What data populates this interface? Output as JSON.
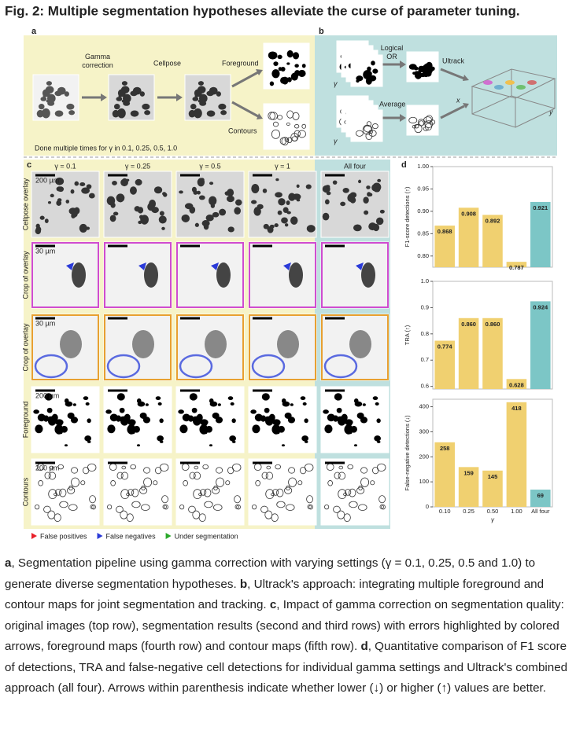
{
  "title": "Fig. 2: Multiple segmentation hypotheses alleviate the curse of parameter tuning.",
  "panel_a": {
    "label": "a",
    "steps": [
      "Gamma correction",
      "Cellpose",
      "Foreground",
      "Contours"
    ],
    "note": "Done multiple times for γ in 0.1, 0.25, 0.5, 1.0"
  },
  "panel_b": {
    "label": "b",
    "steps": [
      "Logical OR",
      "Average",
      "Ultrack"
    ],
    "axis_labels": [
      "γ",
      "γ",
      "x",
      "y"
    ]
  },
  "panel_c": {
    "label": "c",
    "columns": [
      "γ = 0.1",
      "γ = 0.25",
      "γ = 0.5",
      "γ = 1",
      "All four"
    ],
    "rows": [
      "Cellpose overlay",
      "Crop of overlay",
      "Crop of overlay",
      "Foreground",
      "Contours"
    ],
    "scale_bars": [
      "200 µm",
      "30 µm",
      "30 µm",
      "200 µm",
      "200 µm"
    ],
    "legend": [
      {
        "name": "False positives",
        "color": "#e8202a"
      },
      {
        "name": "False negatives",
        "color": "#2a3ad8"
      },
      {
        "name": "Under segmentation",
        "color": "#2aa82a"
      }
    ]
  },
  "panel_d": {
    "label": "d",
    "categories": [
      "0.10",
      "0.25",
      "0.50",
      "1.00",
      "All four"
    ],
    "xlabel": "γ",
    "colors": [
      "#f0d070",
      "#f0d070",
      "#f0d070",
      "#f0d070",
      "#7cc6c6"
    ],
    "charts": [
      {
        "type": "bar",
        "ylabel": "F1-score detections (↑)",
        "values": [
          0.868,
          0.908,
          0.892,
          0.787,
          0.921
        ],
        "ylim": [
          0.775,
          1.0
        ],
        "yticks": [
          {
            "value": 0.8,
            "label": "0.80"
          },
          0.85,
          {
            "value": 0.9,
            "label": "0.90"
          },
          0.95,
          {
            "value": 1.0,
            "label": "1.00"
          }
        ]
      },
      {
        "type": "bar",
        "ylabel": "TRA (↑)",
        "values": [
          0.774,
          0.86,
          0.86,
          0.628,
          0.924
        ],
        "value_labels": [
          "0.774",
          "0.860",
          "0.860",
          "0.628",
          "0.924"
        ],
        "ylim": [
          0.59,
          1.0
        ],
        "yticks": [
          0.6,
          0.7,
          0.8,
          0.9,
          {
            "value": 1.0,
            "label": "1.0"
          }
        ]
      },
      {
        "type": "bar",
        "ylabel": "False-negative detections (↓)",
        "values": [
          258,
          159,
          145,
          418,
          69
        ],
        "ylim": [
          0,
          430
        ],
        "yticks": [
          0,
          100,
          200,
          300,
          400
        ]
      }
    ]
  },
  "caption": [
    {
      "label": "a",
      "text": ", Segmentation pipeline using gamma correction with varying settings (γ = 0.1, 0.25, 0.5 and 1.0) to generate diverse segmentation hypotheses. "
    },
    {
      "label": "b",
      "text": ", Ultrack's approach: integrating multiple foreground and contour maps for joint segmentation and tracking. "
    },
    {
      "label": "c",
      "text": ", Impact of gamma correction on segmentation quality: original images (top row), segmentation results (second and third rows) with errors highlighted by colored arrows, foreground maps (fourth row) and contour maps (fifth row). "
    },
    {
      "label": "d",
      "text": ", Quantitative comparison of F1 score of detections, TRA and false-negative cell detections for individual gamma settings and Ultrack's combined approach (all four). Arrows within parenthesis indicate whether lower (↓) or higher (↑) values are better."
    }
  ]
}
